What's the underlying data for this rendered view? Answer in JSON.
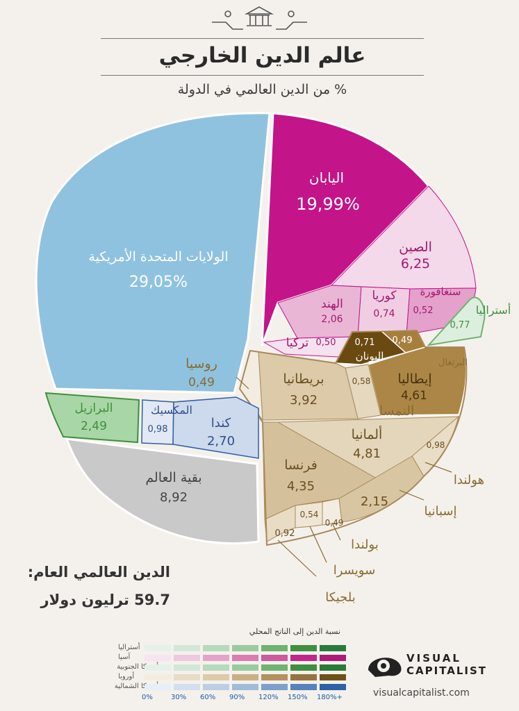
{
  "header": {
    "title": "عالم الدين الخارجي",
    "subtitle": "% من الدين العالمي في الدولة"
  },
  "total": {
    "label": "الدين العالمي العام:",
    "value": "59.7 ترليون دولار"
  },
  "legend": {
    "title": "نسبة الدين إلى الناتج المحلي",
    "rows": [
      "أستراليا",
      "آسيا",
      "أمريكا الجنوبية",
      "أوروبا",
      "أمريكا الشمالية"
    ],
    "colors": [
      [
        "#e6f0ea",
        "#d2e7d8",
        "#b7d9be",
        "#9acb9f",
        "#6fb36f",
        "#3f8f3f",
        "#2a7a3a"
      ],
      [
        "#f6e4ef",
        "#efc8df",
        "#e4a4c9",
        "#d97db2",
        "#cc5a9d",
        "#c1278a",
        "#ae1a7a"
      ],
      [
        "#e6f0ea",
        "#d2e7d8",
        "#b7d9be",
        "#9acb9f",
        "#6fb36f",
        "#3f8f3f",
        "#2a7a3a"
      ],
      [
        "#f3ece0",
        "#e8dcc6",
        "#dccaa8",
        "#c9b084",
        "#b39260",
        "#96743f",
        "#6e5019"
      ],
      [
        "#e9eef6",
        "#d4dfee",
        "#bccde4",
        "#a3bad9",
        "#7c9fcb",
        "#5683bc",
        "#2f61a6"
      ]
    ],
    "ticks": [
      "0%",
      "30%",
      "60%",
      "90%",
      "120%",
      "150%",
      "180%+"
    ],
    "table_colors": [
      "#8fc3e0",
      "#c7cbe0",
      "#d9c7a8"
    ]
  },
  "brand": {
    "word1": "VISUAL",
    "word2": "CAPITALIST",
    "url": "visualcapitalist.com"
  },
  "chart_data": {
    "type": "pie",
    "title": "عالم الدين الخارجي",
    "subtitle": "% من الدين العالمي في الدولة",
    "unit": "%",
    "slices": [
      {
        "name": "الولايات المتحدة الأمريكية",
        "value": 29.05,
        "label": "29,05%",
        "region": "أمريكا الشمالية",
        "color": "#8fc2df"
      },
      {
        "name": "اليابان",
        "value": 19.99,
        "label": "19,99%",
        "region": "آسيا",
        "color": "#c4148a"
      },
      {
        "name": "الصين",
        "value": 6.25,
        "label": "6,25",
        "region": "آسيا",
        "color": "#f3d9ea"
      },
      {
        "name": "الهند",
        "value": 2.06,
        "label": "2,06",
        "region": "آسيا",
        "color": "#e9b6d6"
      },
      {
        "name": "كوريا",
        "value": 0.74,
        "label": "0,74",
        "region": "آسيا",
        "color": "#f1cde3"
      },
      {
        "name": "سنغافورة",
        "value": 0.52,
        "label": "0,52",
        "region": "آسيا",
        "color": "#e3a1cb"
      },
      {
        "name": "تركيا",
        "value": 0.5,
        "label": "0,50",
        "region": "آسيا",
        "color": "#f6e2ee"
      },
      {
        "name": "أستراليا",
        "value": 0.77,
        "label": "0,77",
        "region": "أستراليا",
        "color": "#dcefdf"
      },
      {
        "name": "اليونان",
        "value": 0.71,
        "label": "0,71",
        "region": "أوروبا",
        "color": "#6b4a12"
      },
      {
        "name": "البرتغال",
        "value": 0.49,
        "label": "0,49",
        "region": "أوروبا",
        "color": "#a77f3d"
      },
      {
        "name": "إيطاليا",
        "value": 4.61,
        "label": "4,61",
        "region": "أوروبا",
        "color": "#ab8646"
      },
      {
        "name": "النمسا",
        "value": 0.58,
        "label": "0,58",
        "region": "أوروبا",
        "color": "#e6d8bf"
      },
      {
        "name": "بريطانيا",
        "value": 3.92,
        "label": "3,92",
        "region": "أوروبا",
        "color": "#dccaa9"
      },
      {
        "name": "روسيا",
        "value": 0.49,
        "label": "0,49",
        "region": "أوروبا",
        "color": "#f3ece0"
      },
      {
        "name": "ألمانيا",
        "value": 4.81,
        "label": "4,81",
        "region": "أوروبا",
        "color": "#e4d6bb"
      },
      {
        "name": "هولندا",
        "value": 0.98,
        "label": "0,98",
        "region": "أوروبا",
        "color": "#e9ddc7"
      },
      {
        "name": "إسبانيا",
        "value": 2.15,
        "label": "2,15",
        "region": "أوروبا",
        "color": "#d8c6a3"
      },
      {
        "name": "فرنسا",
        "value": 4.35,
        "label": "4,35",
        "region": "أوروبا",
        "color": "#d4c19c"
      },
      {
        "name": "بولندا",
        "value": 0.49,
        "label": "0,49",
        "region": "أوروبا",
        "color": "#f3ece0"
      },
      {
        "name": "سويسرا",
        "value": 0.54,
        "label": "0,54",
        "region": "أوروبا",
        "color": "#efe6d6"
      },
      {
        "name": "بلجيكا",
        "value": 0.92,
        "label": "0,92",
        "region": "أوروبا",
        "color": "#e9dcc5"
      },
      {
        "name": "البرازيل",
        "value": 2.49,
        "label": "2,49",
        "region": "أمريكا الجنوبية",
        "color": "#a9d6a6"
      },
      {
        "name": "المكسيك",
        "value": 0.98,
        "label": "0,98",
        "region": "أمريكا الشمالية",
        "color": "#e3e9f4"
      },
      {
        "name": "كندا",
        "value": 2.7,
        "label": "2,70",
        "region": "أمريكا الشمالية",
        "color": "#cdd9ec"
      },
      {
        "name": "بقية العالم",
        "value": 8.92,
        "label": "8,92",
        "region": "",
        "color": "#c9c9c9"
      }
    ]
  }
}
